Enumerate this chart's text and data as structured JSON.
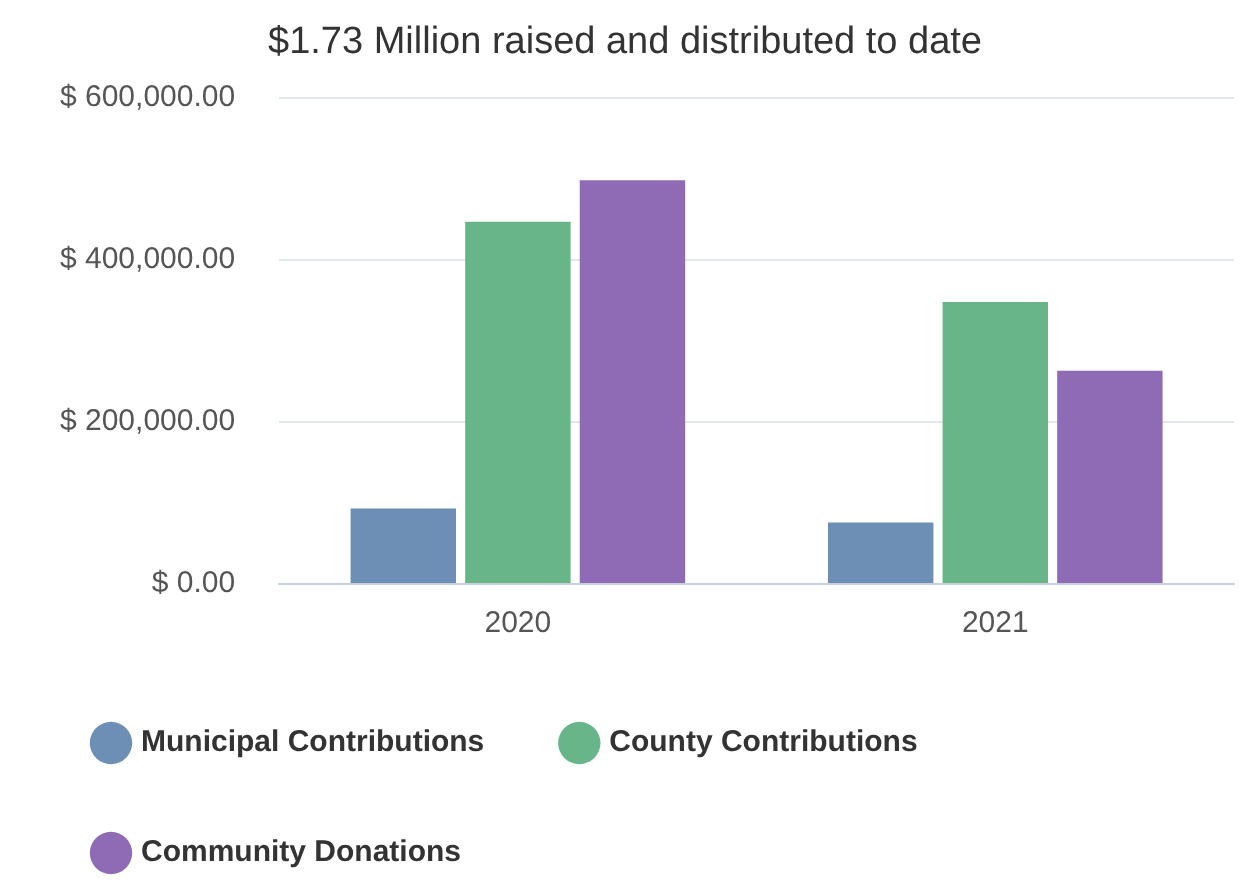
{
  "chart_data": {
    "type": "bar",
    "title": "$1.73 Million raised and distributed to date",
    "categories": [
      "2020",
      "2021"
    ],
    "series": [
      {
        "name": "Municipal Contributions",
        "color": "#6d8fb6",
        "values": [
          93000,
          76000
        ]
      },
      {
        "name": "County Contributions",
        "color": "#69b58a",
        "values": [
          447000,
          348000
        ]
      },
      {
        "name": "Community Donations",
        "color": "#8f6bb5",
        "values": [
          498000,
          263000
        ]
      }
    ],
    "ylim": [
      0,
      600000
    ],
    "yticks": [
      {
        "value": 0,
        "label": "$ 0.00"
      },
      {
        "value": 200000,
        "label": "$ 200,000.00"
      },
      {
        "value": 400000,
        "label": "$ 400,000.00"
      },
      {
        "value": 600000,
        "label": "$ 600,000.00"
      }
    ],
    "grid": "y",
    "legend": "bottom",
    "marker": "circle"
  }
}
